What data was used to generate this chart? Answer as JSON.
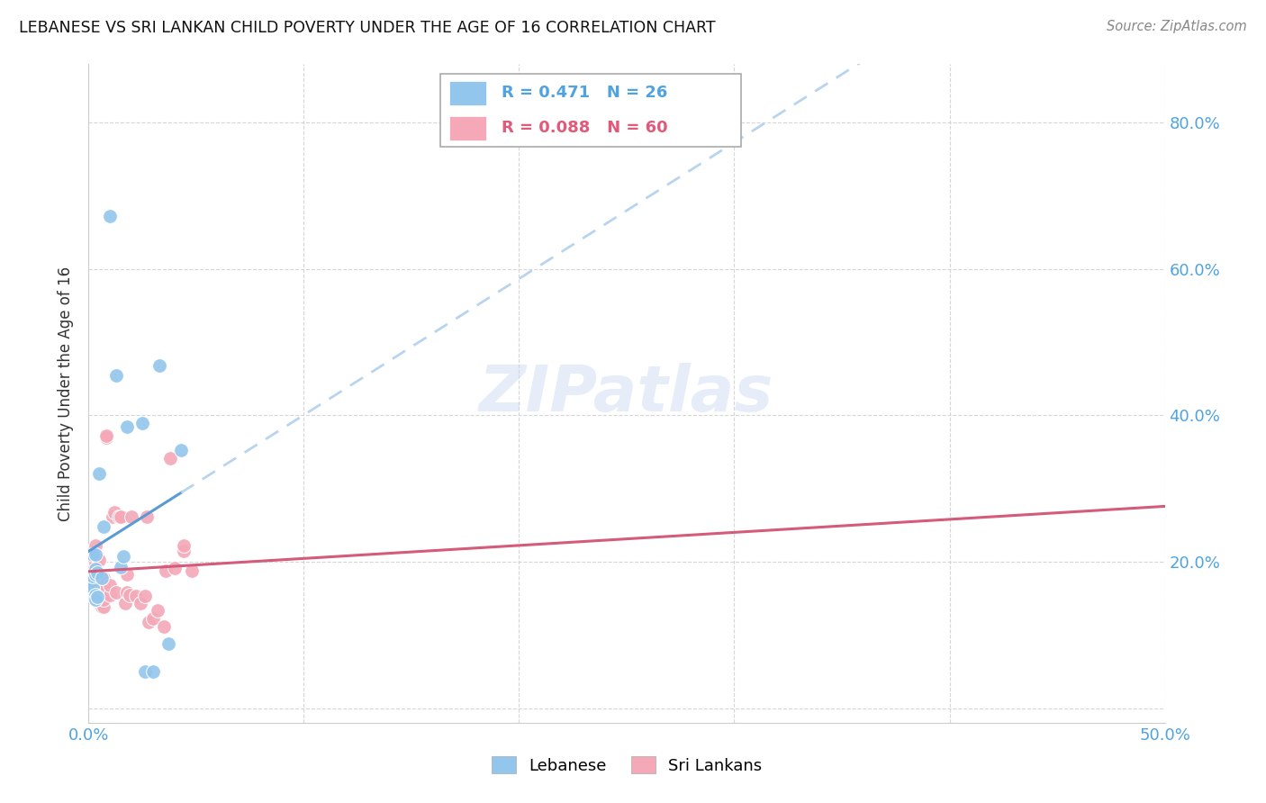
{
  "title": "LEBANESE VS SRI LANKAN CHILD POVERTY UNDER THE AGE OF 16 CORRELATION CHART",
  "source": "Source: ZipAtlas.com",
  "ylabel": "Child Poverty Under the Age of 16",
  "xlim": [
    0.0,
    0.5
  ],
  "ylim": [
    -0.02,
    0.88
  ],
  "xticks": [
    0.0,
    0.1,
    0.2,
    0.3,
    0.4,
    0.5
  ],
  "yticks": [
    0.0,
    0.2,
    0.4,
    0.6,
    0.8
  ],
  "ytick_labels": [
    "",
    "20.0%",
    "40.0%",
    "60.0%",
    "80.0%"
  ],
  "xtick_labels": [
    "0.0%",
    "",
    "",
    "",
    "",
    "50.0%"
  ],
  "grid_color": "#cccccc",
  "background_color": "#ffffff",
  "lebanese_color": "#93c6ed",
  "srilankans_color": "#f4a8b8",
  "lebanese_line_color": "#5b9bd5",
  "srilankans_line_color": "#d45b7a",
  "dashed_line_color": "#b8d4ee",
  "lebanese_R": 0.471,
  "lebanese_N": 26,
  "srilankans_R": 0.088,
  "srilankans_N": 60,
  "watermark": "ZIPatlas",
  "lebanese_points": [
    [
      0.001,
      0.155
    ],
    [
      0.001,
      0.17
    ],
    [
      0.002,
      0.165
    ],
    [
      0.002,
      0.18
    ],
    [
      0.002,
      0.21
    ],
    [
      0.003,
      0.21
    ],
    [
      0.003,
      0.19
    ],
    [
      0.003,
      0.155
    ],
    [
      0.003,
      0.148
    ],
    [
      0.003,
      0.183
    ],
    [
      0.004,
      0.185
    ],
    [
      0.004,
      0.152
    ],
    [
      0.005,
      0.32
    ],
    [
      0.006,
      0.178
    ],
    [
      0.007,
      0.248
    ],
    [
      0.01,
      0.672
    ],
    [
      0.013,
      0.455
    ],
    [
      0.015,
      0.193
    ],
    [
      0.016,
      0.208
    ],
    [
      0.018,
      0.385
    ],
    [
      0.025,
      0.39
    ],
    [
      0.026,
      0.05
    ],
    [
      0.03,
      0.05
    ],
    [
      0.033,
      0.468
    ],
    [
      0.037,
      0.088
    ],
    [
      0.043,
      0.352
    ]
  ],
  "srilankans_points": [
    [
      0.001,
      0.192
    ],
    [
      0.001,
      0.183
    ],
    [
      0.001,
      0.198
    ],
    [
      0.001,
      0.208
    ],
    [
      0.002,
      0.168
    ],
    [
      0.002,
      0.173
    ],
    [
      0.002,
      0.192
    ],
    [
      0.002,
      0.202
    ],
    [
      0.003,
      0.183
    ],
    [
      0.003,
      0.198
    ],
    [
      0.003,
      0.173
    ],
    [
      0.003,
      0.212
    ],
    [
      0.003,
      0.222
    ],
    [
      0.003,
      0.163
    ],
    [
      0.004,
      0.158
    ],
    [
      0.004,
      0.148
    ],
    [
      0.004,
      0.168
    ],
    [
      0.004,
      0.173
    ],
    [
      0.004,
      0.183
    ],
    [
      0.004,
      0.208
    ],
    [
      0.005,
      0.143
    ],
    [
      0.005,
      0.153
    ],
    [
      0.005,
      0.203
    ],
    [
      0.006,
      0.138
    ],
    [
      0.006,
      0.143
    ],
    [
      0.006,
      0.158
    ],
    [
      0.006,
      0.168
    ],
    [
      0.006,
      0.178
    ],
    [
      0.007,
      0.138
    ],
    [
      0.007,
      0.148
    ],
    [
      0.007,
      0.168
    ],
    [
      0.007,
      0.178
    ],
    [
      0.008,
      0.37
    ],
    [
      0.008,
      0.372
    ],
    [
      0.01,
      0.155
    ],
    [
      0.01,
      0.168
    ],
    [
      0.011,
      0.262
    ],
    [
      0.012,
      0.268
    ],
    [
      0.013,
      0.158
    ],
    [
      0.014,
      0.262
    ],
    [
      0.015,
      0.262
    ],
    [
      0.017,
      0.143
    ],
    [
      0.018,
      0.158
    ],
    [
      0.018,
      0.183
    ],
    [
      0.019,
      0.155
    ],
    [
      0.02,
      0.262
    ],
    [
      0.022,
      0.153
    ],
    [
      0.024,
      0.143
    ],
    [
      0.026,
      0.153
    ],
    [
      0.027,
      0.262
    ],
    [
      0.028,
      0.118
    ],
    [
      0.03,
      0.123
    ],
    [
      0.032,
      0.133
    ],
    [
      0.035,
      0.112
    ],
    [
      0.036,
      0.188
    ],
    [
      0.038,
      0.342
    ],
    [
      0.04,
      0.192
    ],
    [
      0.044,
      0.215
    ],
    [
      0.044,
      0.222
    ],
    [
      0.048,
      0.188
    ]
  ]
}
